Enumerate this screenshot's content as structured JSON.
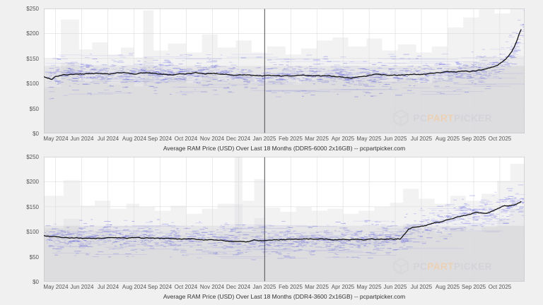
{
  "page": {
    "background_color": "#f0f0f1"
  },
  "watermark": {
    "cube_color": "#d7d7db",
    "segments": [
      {
        "text": "PC",
        "color": "#d3d3d7"
      },
      {
        "text": "PART",
        "color": "#eccfb2"
      },
      {
        "text": "PICKER",
        "color": "#d3d3d7"
      }
    ]
  },
  "chart_data": [
    {
      "type": "line",
      "title": "Average RAM Price (USD) Over Last 18 Months (DDR5-6000 2x16GB) -- pcpartpicker.com",
      "x_unit": "months (0 = May 2024, 17 = Oct 2025)",
      "x_tick_labels": [
        "May 2024",
        "Jun 2024",
        "Jul 2024",
        "Aug 2024",
        "Sep 2024",
        "Oct 2024",
        "Nov 2024",
        "Dec 2024",
        "Jan 2025",
        "Feb 2025",
        "Mar 2025",
        "Apr 2025",
        "May 2025",
        "Jun 2025",
        "Jul 2025",
        "Aug 2025",
        "Sep 2025",
        "Oct 2025"
      ],
      "y_ticks": [
        "$250",
        "$200",
        "$150",
        "$100",
        "$50",
        "$0"
      ],
      "ylim": [
        0,
        250
      ],
      "x_domain": [
        -0.45,
        17.95
      ],
      "dark_gridline_index": 8,
      "grid": true,
      "legend": "none",
      "line_color": "#111111",
      "scatter_color_rgb": "70,70,220",
      "series": [
        {
          "name": "Average Price (USD)",
          "points": [
            [
              -0.45,
              113
            ],
            [
              -0.3,
              111
            ],
            [
              -0.15,
              109
            ],
            [
              0,
              115
            ],
            [
              0.4,
              118
            ],
            [
              1,
              119
            ],
            [
              1.5,
              120
            ],
            [
              2,
              119
            ],
            [
              2.5,
              121
            ],
            [
              3,
              120
            ],
            [
              3.5,
              121
            ],
            [
              4,
              120
            ],
            [
              4.5,
              119
            ],
            [
              5,
              120
            ],
            [
              5.5,
              121
            ],
            [
              6,
              119
            ],
            [
              6.5,
              118
            ],
            [
              7,
              117
            ],
            [
              7.5,
              116
            ],
            [
              8,
              116
            ],
            [
              8.5,
              115
            ],
            [
              9,
              115
            ],
            [
              9.5,
              116
            ],
            [
              10,
              116
            ],
            [
              10.5,
              115
            ],
            [
              11,
              112
            ],
            [
              11.3,
              110
            ],
            [
              11.7,
              114
            ],
            [
              12,
              116
            ],
            [
              12.5,
              117
            ],
            [
              13,
              116
            ],
            [
              13.5,
              117
            ],
            [
              14,
              118
            ],
            [
              14.5,
              120
            ],
            [
              15,
              122
            ],
            [
              15.5,
              123
            ],
            [
              16,
              124
            ],
            [
              16.3,
              127
            ],
            [
              16.6,
              131
            ],
            [
              16.9,
              136
            ],
            [
              17.1,
              143
            ],
            [
              17.3,
              153
            ],
            [
              17.45,
              162
            ],
            [
              17.55,
              172
            ],
            [
              17.65,
              184
            ],
            [
              17.72,
              195
            ],
            [
              17.8,
              205
            ],
            [
              17.85,
              211
            ]
          ]
        }
      ],
      "scatter": {
        "sd": 9,
        "uniform_spread": 42,
        "clamp": [
          65,
          250
        ],
        "n_short": 1300,
        "n_long": 80
      },
      "base_band_top": 135,
      "gray_bands": [
        [
          -0.45,
          0.2,
          150
        ],
        [
          0.2,
          0.9,
          228
        ],
        [
          0.9,
          1.4,
          168
        ],
        [
          1.4,
          2.0,
          182
        ],
        [
          2.0,
          2.5,
          158
        ],
        [
          2.5,
          3.0,
          172
        ],
        [
          3.0,
          3.35,
          152
        ],
        [
          3.35,
          3.75,
          246
        ],
        [
          3.75,
          4.3,
          166
        ],
        [
          4.3,
          5.0,
          180
        ],
        [
          5.0,
          5.6,
          162
        ],
        [
          5.6,
          6.2,
          198
        ],
        [
          6.2,
          6.9,
          172
        ],
        [
          6.9,
          7.5,
          186
        ],
        [
          7.5,
          8.1,
          162
        ],
        [
          8.1,
          8.8,
          174
        ],
        [
          8.8,
          9.4,
          158
        ],
        [
          9.4,
          10.0,
          170
        ],
        [
          10.0,
          10.6,
          186
        ],
        [
          10.6,
          11.2,
          192
        ],
        [
          11.2,
          11.9,
          174
        ],
        [
          11.9,
          12.5,
          190
        ],
        [
          12.5,
          13.1,
          166
        ],
        [
          13.1,
          13.8,
          178
        ],
        [
          13.8,
          14.4,
          162
        ],
        [
          14.4,
          15.0,
          174
        ],
        [
          15.0,
          15.6,
          212
        ],
        [
          15.6,
          16.2,
          232
        ],
        [
          16.2,
          16.8,
          248
        ],
        [
          16.8,
          17.4,
          240
        ],
        [
          17.4,
          17.95,
          250
        ]
      ],
      "seed": 42
    },
    {
      "type": "line",
      "title": "Average RAM Price (USD) Over Last 18 Months (DDR4-3600 2x16GB) -- pcpartpicker.com",
      "x_unit": "months (0 = May 2024, 17 = Oct 2025)",
      "x_tick_labels": [
        "May 2024",
        "Jun 2024",
        "Jul 2024",
        "Aug 2024",
        "Sep 2024",
        "Oct 2024",
        "Nov 2024",
        "Dec 2024",
        "Jan 2025",
        "Feb 2025",
        "Mar 2025",
        "Apr 2025",
        "May 2025",
        "Jun 2025",
        "Jul 2025",
        "Aug 2025",
        "Sep 2025",
        "Oct 2025"
      ],
      "y_ticks": [
        "$250",
        "$200",
        "$150",
        "$100",
        "$50",
        "$0"
      ],
      "ylim": [
        0,
        250
      ],
      "x_domain": [
        -0.45,
        17.95
      ],
      "dark_gridline_index": 8,
      "grid": true,
      "legend": "none",
      "line_color": "#111111",
      "scatter_color_rgb": "70,70,220",
      "series": [
        {
          "name": "Average Price (USD)",
          "points": [
            [
              -0.45,
              92
            ],
            [
              0,
              90
            ],
            [
              0.5,
              88
            ],
            [
              1,
              87
            ],
            [
              1.5,
              88
            ],
            [
              2,
              87
            ],
            [
              2.5,
              87
            ],
            [
              3,
              88
            ],
            [
              3.5,
              87
            ],
            [
              4,
              86
            ],
            [
              4.5,
              86
            ],
            [
              5,
              85
            ],
            [
              5.5,
              85
            ],
            [
              6,
              84
            ],
            [
              6.5,
              83
            ],
            [
              7,
              81
            ],
            [
              7.3,
              80
            ],
            [
              7.6,
              82
            ],
            [
              8,
              83
            ],
            [
              8.5,
              84
            ],
            [
              9,
              85
            ],
            [
              9.5,
              85
            ],
            [
              10,
              85
            ],
            [
              10.5,
              84
            ],
            [
              11,
              84
            ],
            [
              11.5,
              84
            ],
            [
              12,
              85
            ],
            [
              12.5,
              85
            ],
            [
              13,
              85
            ],
            [
              13.2,
              86
            ],
            [
              13.35,
              96
            ],
            [
              13.5,
              106
            ],
            [
              13.7,
              110
            ],
            [
              14,
              111
            ],
            [
              14.2,
              113
            ],
            [
              14.5,
              118
            ],
            [
              14.8,
              121
            ],
            [
              15,
              124
            ],
            [
              15.3,
              129
            ],
            [
              15.6,
              132
            ],
            [
              15.9,
              136
            ],
            [
              16.1,
              139
            ],
            [
              16.3,
              137
            ],
            [
              16.5,
              135
            ],
            [
              16.7,
              140
            ],
            [
              16.9,
              146
            ],
            [
              17.1,
              150
            ],
            [
              17.3,
              152
            ],
            [
              17.5,
              154
            ],
            [
              17.65,
              156
            ],
            [
              17.85,
              162
            ]
          ]
        }
      ],
      "scatter": {
        "sd": 11,
        "uniform_spread": 38,
        "clamp": [
          38,
          215
        ],
        "n_short": 1300,
        "n_long": 80
      },
      "base_band_top": 112,
      "gray_bands": [
        [
          -0.45,
          0.3,
          172
        ],
        [
          0.3,
          0.95,
          203
        ],
        [
          0.95,
          1.5,
          152
        ],
        [
          1.5,
          2.1,
          162
        ],
        [
          2.1,
          2.7,
          146
        ],
        [
          2.7,
          3.2,
          156
        ],
        [
          3.2,
          3.8,
          150
        ],
        [
          3.8,
          4.4,
          142
        ],
        [
          4.4,
          5.0,
          152
        ],
        [
          5.0,
          5.6,
          136
        ],
        [
          5.6,
          6.2,
          146
        ],
        [
          6.2,
          6.85,
          156
        ],
        [
          6.85,
          7.15,
          250
        ],
        [
          7.15,
          7.6,
          162
        ],
        [
          7.6,
          8.0,
          205
        ],
        [
          8.0,
          8.6,
          148
        ],
        [
          8.6,
          9.2,
          140
        ],
        [
          9.2,
          9.8,
          150
        ],
        [
          9.8,
          10.4,
          142
        ],
        [
          10.4,
          11.0,
          146
        ],
        [
          11.0,
          11.6,
          136
        ],
        [
          11.6,
          12.2,
          142
        ],
        [
          12.2,
          12.8,
          150
        ],
        [
          12.8,
          13.3,
          158
        ],
        [
          13.3,
          13.9,
          186
        ],
        [
          13.9,
          14.5,
          166
        ],
        [
          14.5,
          15.1,
          156
        ],
        [
          15.1,
          15.7,
          172
        ],
        [
          15.7,
          16.3,
          162
        ],
        [
          16.3,
          16.9,
          176
        ],
        [
          16.9,
          17.4,
          202
        ],
        [
          17.4,
          17.95,
          236
        ]
      ],
      "seed": 1337
    }
  ]
}
